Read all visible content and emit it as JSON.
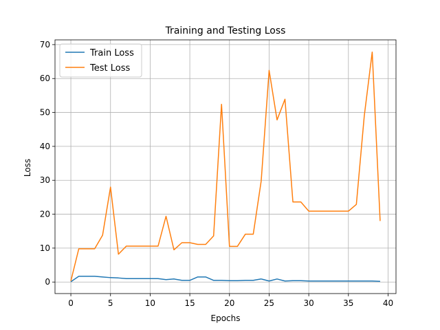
{
  "chart_data": {
    "type": "line",
    "title": "Training and Testing Loss",
    "xlabel": "Epochs",
    "ylabel": "Loss",
    "xlim": [
      -2,
      41
    ],
    "ylim": [
      -3.4,
      71.4
    ],
    "xticks": [
      0,
      5,
      10,
      15,
      20,
      25,
      30,
      35,
      40
    ],
    "yticks": [
      0,
      10,
      20,
      30,
      40,
      50,
      60,
      70
    ],
    "grid": true,
    "legend": "top-left",
    "x": [
      0,
      1,
      2,
      3,
      4,
      5,
      6,
      7,
      8,
      9,
      10,
      11,
      12,
      13,
      14,
      15,
      16,
      17,
      18,
      19,
      20,
      21,
      22,
      23,
      24,
      25,
      26,
      27,
      28,
      29,
      30,
      31,
      32,
      33,
      34,
      35,
      36,
      37,
      38,
      39
    ],
    "series": [
      {
        "name": "Train Loss",
        "color": "#1f77b4",
        "values": [
          0.1,
          1.7,
          1.7,
          1.7,
          1.5,
          1.3,
          1.2,
          1.0,
          1.0,
          1.0,
          1.0,
          1.0,
          0.7,
          0.9,
          0.5,
          0.5,
          1.5,
          1.5,
          0.5,
          0.5,
          0.4,
          0.4,
          0.5,
          0.5,
          0.9,
          0.3,
          0.9,
          0.3,
          0.4,
          0.4,
          0.3,
          0.3,
          0.3,
          0.3,
          0.3,
          0.3,
          0.3,
          0.3,
          0.3,
          0.2
        ]
      },
      {
        "name": "Test Loss",
        "color": "#ff7f0e",
        "values": [
          0.3,
          9.8,
          9.8,
          9.8,
          13.8,
          28.0,
          8.2,
          10.6,
          10.6,
          10.6,
          10.6,
          10.6,
          19.4,
          9.5,
          11.6,
          11.6,
          11.1,
          11.1,
          13.6,
          52.4,
          10.5,
          10.5,
          14.1,
          14.1,
          29.8,
          62.4,
          47.8,
          53.9,
          23.6,
          23.6,
          20.9,
          20.9,
          20.9,
          20.9,
          20.9,
          20.9,
          22.9,
          49.0,
          67.8,
          18.0
        ]
      }
    ]
  }
}
